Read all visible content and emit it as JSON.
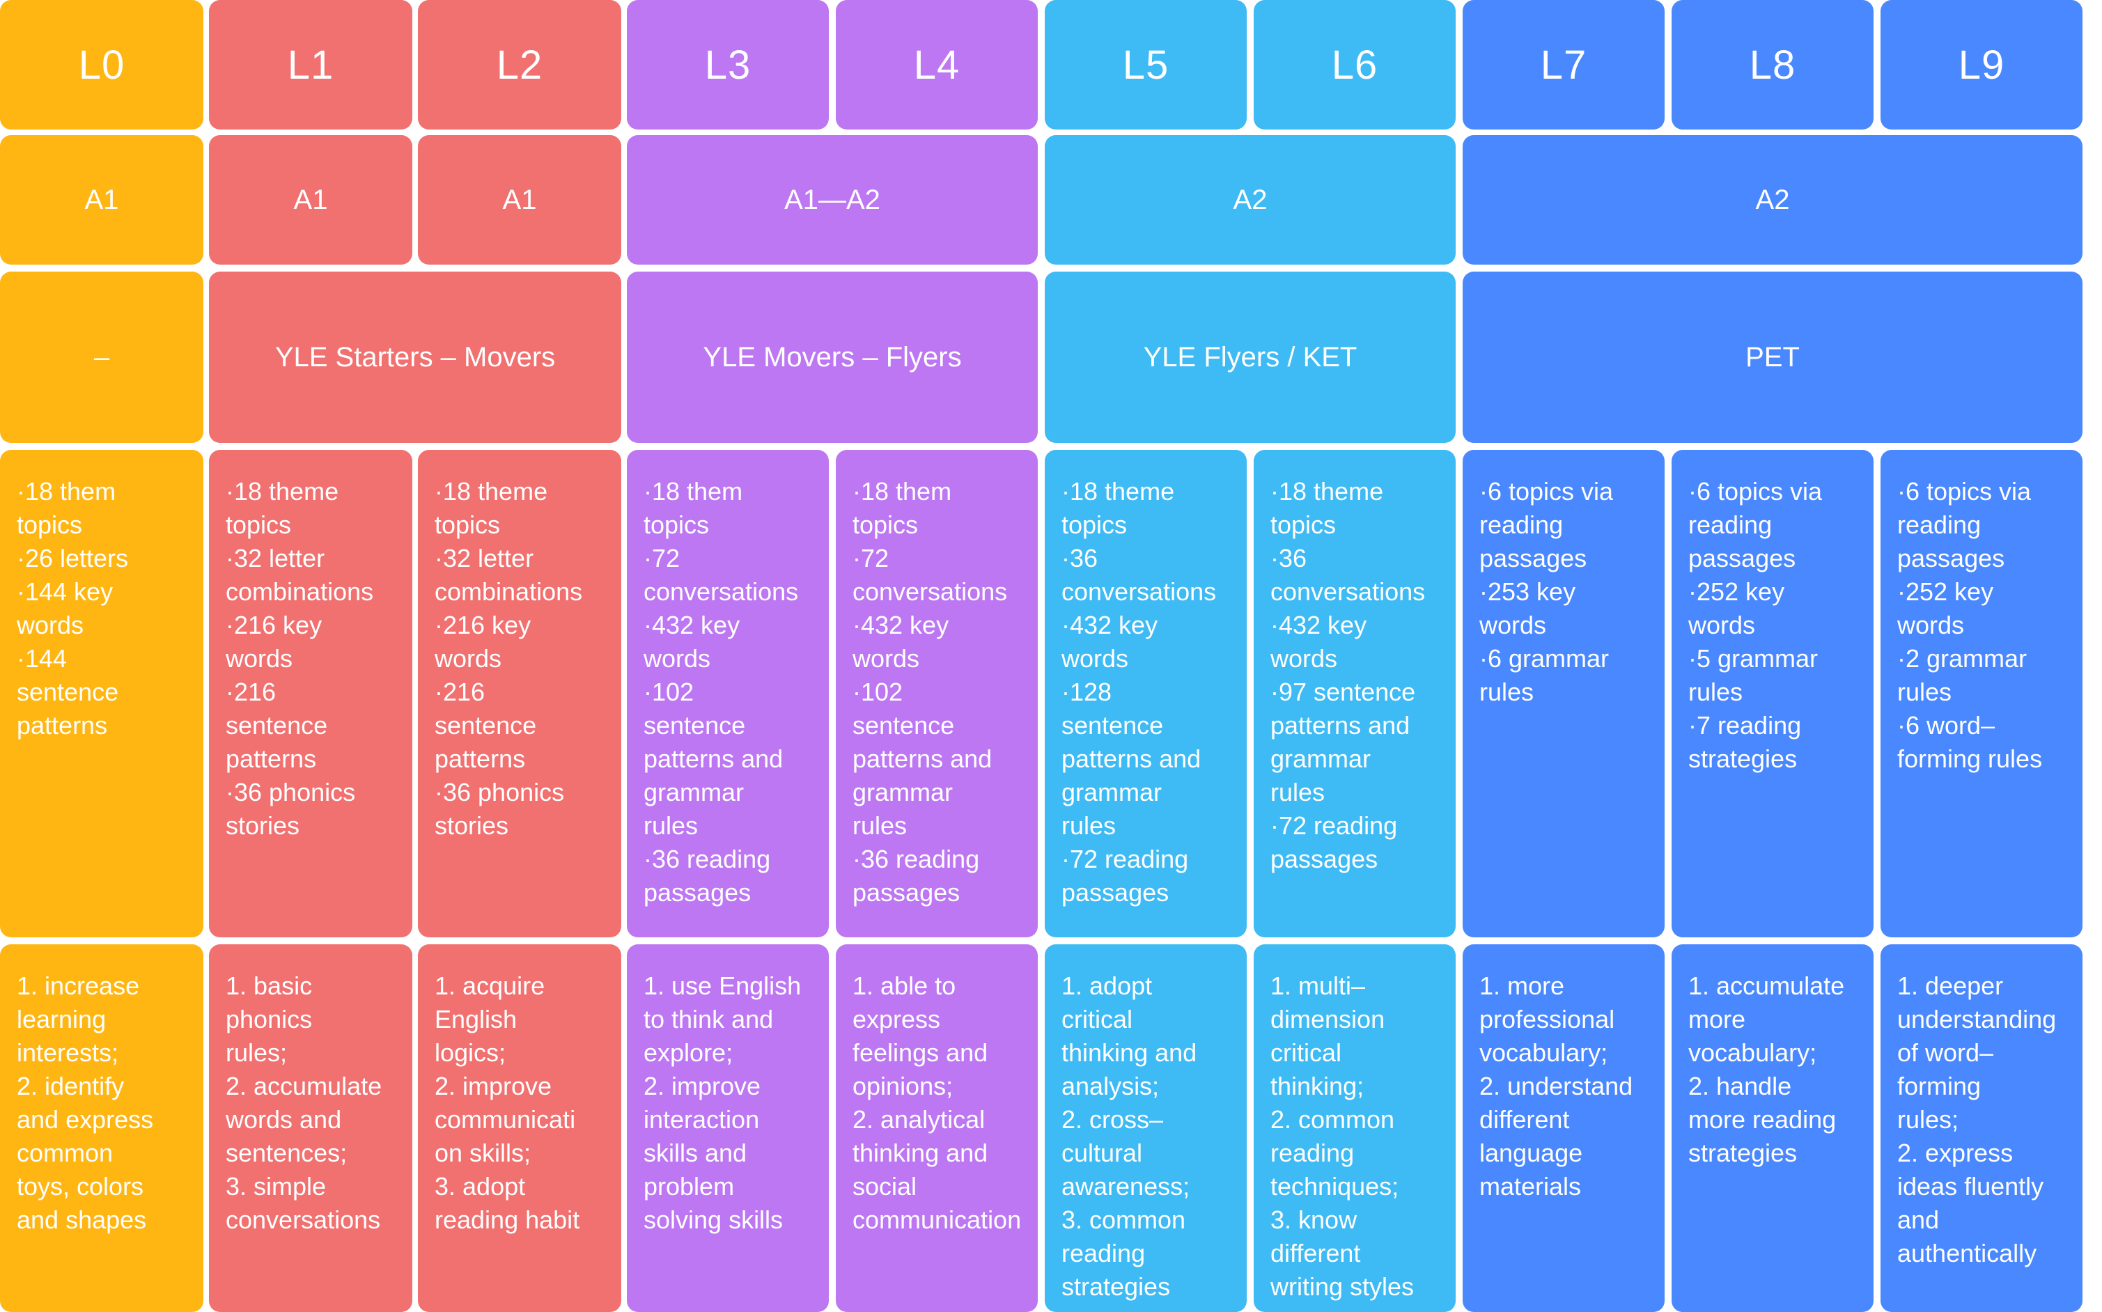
{
  "colors": {
    "yellow": "#FFB613",
    "red": "#F17070",
    "purple": "#BD77F2",
    "cyan": "#3EBAF5",
    "blue": "#4988FF"
  },
  "levels": [
    {
      "label": "L0",
      "color": "yellow"
    },
    {
      "label": "L1",
      "color": "red"
    },
    {
      "label": "L2",
      "color": "red"
    },
    {
      "label": "L3",
      "color": "purple"
    },
    {
      "label": "L4",
      "color": "purple"
    },
    {
      "label": "L5",
      "color": "cyan"
    },
    {
      "label": "L6",
      "color": "cyan"
    },
    {
      "label": "L7",
      "color": "blue"
    },
    {
      "label": "L8",
      "color": "blue"
    },
    {
      "label": "L9",
      "color": "blue"
    }
  ],
  "cefr": [
    {
      "text": "A1",
      "levels": [
        "L0"
      ],
      "color": "yellow"
    },
    {
      "text": "A1",
      "levels": [
        "L1"
      ],
      "color": "red"
    },
    {
      "text": "A1",
      "levels": [
        "L2"
      ],
      "color": "red"
    },
    {
      "text": "A1—A2",
      "levels": [
        "L3",
        "L4"
      ],
      "color": "purple"
    },
    {
      "text": "A2",
      "levels": [
        "L5",
        "L6"
      ],
      "color": "cyan"
    },
    {
      "text": "A2",
      "levels": [
        "L7",
        "L8",
        "L9"
      ],
      "color": "blue"
    }
  ],
  "exams": [
    {
      "text": "–",
      "levels": [
        "L0"
      ],
      "color": "yellow"
    },
    {
      "text": "YLE Starters – Movers",
      "levels": [
        "L1",
        "L2"
      ],
      "color": "red"
    },
    {
      "text": "YLE Movers – Flyers",
      "levels": [
        "L3",
        "L4"
      ],
      "color": "purple"
    },
    {
      "text": "YLE Flyers / KET",
      "levels": [
        "L5",
        "L6"
      ],
      "color": "cyan"
    },
    {
      "text": "PET",
      "levels": [
        "L7",
        "L8",
        "L9"
      ],
      "color": "blue"
    }
  ],
  "content": [
    [
      "·18 them",
      "topics",
      "·26 letters",
      "·144 key",
      "words",
      "·144",
      "sentence",
      "patterns"
    ],
    [
      "·18 theme",
      "topics",
      "·32 letter",
      "combinations",
      "·216 key",
      "words",
      "·216",
      "sentence",
      "patterns",
      "·36 phonics",
      "stories"
    ],
    [
      "·18 theme",
      "topics",
      "·32 letter",
      "combinations",
      "·216 key",
      "words",
      "·216",
      "sentence",
      "patterns",
      "·36 phonics",
      "stories"
    ],
    [
      "·18 them",
      "topics",
      "·72",
      "conversations",
      "·432 key",
      "words",
      "·102",
      "sentence",
      "patterns and",
      "grammar",
      "rules",
      "·36 reading",
      "passages"
    ],
    [
      "·18 them",
      "topics",
      "·72",
      "conversations",
      "·432 key",
      "words",
      "·102",
      "sentence",
      "patterns and",
      "grammar",
      "rules",
      "·36 reading",
      "passages"
    ],
    [
      "·18 theme",
      "topics",
      "·36",
      "conversations",
      "·432 key",
      "words",
      "·128",
      "sentence",
      "patterns and",
      "grammar",
      "rules",
      "·72 reading",
      "passages"
    ],
    [
      "·18 theme",
      "topics",
      "·36",
      "conversations",
      "·432 key",
      "words",
      "·97 sentence",
      "patterns and",
      "grammar",
      "rules",
      "·72 reading",
      "passages"
    ],
    [
      "·6 topics via",
      "reading",
      "passages",
      "·253 key",
      "words",
      "·6 grammar",
      "rules"
    ],
    [
      "·6 topics via",
      "reading",
      "passages",
      "·252 key",
      "words",
      "·5 grammar",
      "rules",
      "·7 reading",
      "strategies"
    ],
    [
      "·6 topics via",
      "reading",
      "passages",
      "·252 key",
      "words",
      "·2 grammar",
      "rules",
      "·6 word–",
      "forming rules"
    ]
  ],
  "goals": [
    [
      "1. increase",
      "learning",
      "interests;",
      "2. identify",
      "and express",
      "common",
      "toys, colors",
      "and shapes"
    ],
    [
      "1. basic",
      "phonics",
      "rules;",
      "2. accumulate",
      "words and",
      "sentences;",
      "3. simple",
      "conversations"
    ],
    [
      "1. acquire",
      "English",
      "logics;",
      "2. improve",
      "communicati",
      "on skills;",
      "3. adopt",
      "reading habit"
    ],
    [
      "1. use English",
      "to think and",
      "explore;",
      "2. improve",
      "interaction",
      "skills and",
      "problem",
      "solving skills"
    ],
    [
      "1. able to",
      "express",
      "feelings and",
      "opinions;",
      "2. analytical",
      "thinking and",
      "social",
      "communication"
    ],
    [
      "1. adopt",
      "critical",
      "thinking and",
      "analysis;",
      "2. cross–",
      "cultural",
      "awareness;",
      "3. common",
      "reading",
      "strategies"
    ],
    [
      "1. multi–",
      "dimension",
      "critical",
      "thinking;",
      "2. common",
      "reading",
      "techniques;",
      "3. know",
      "different",
      "writing styles"
    ],
    [
      "1. more",
      "professional",
      "vocabulary;",
      "2. understand",
      "different",
      "language",
      "materials"
    ],
    [
      "1. accumulate",
      "more",
      "vocabulary;",
      "2. handle",
      "more reading",
      "strategies"
    ],
    [
      "1. deeper",
      "understanding",
      "of word–",
      "forming",
      "rules;",
      "2. express",
      "ideas fluently",
      "and",
      "authentically"
    ]
  ]
}
